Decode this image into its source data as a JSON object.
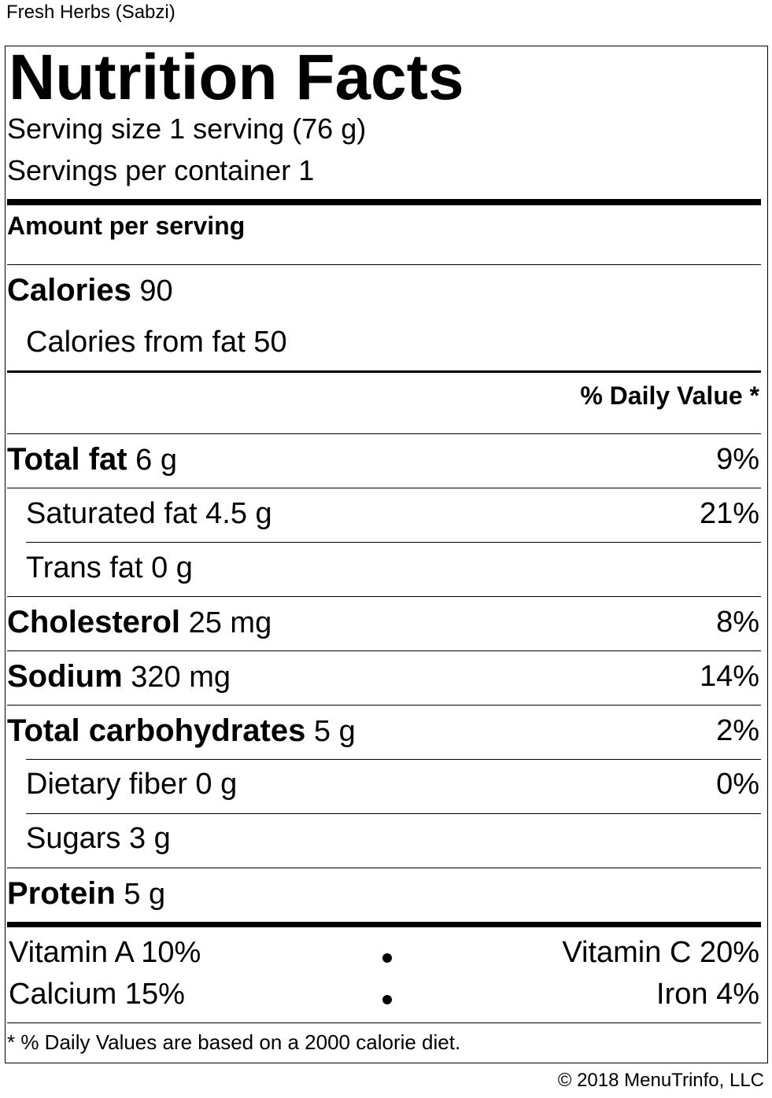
{
  "product_name": "Fresh Herbs (Sabzi)",
  "label": {
    "title": "Nutrition Facts",
    "serving_size": "Serving size 1 serving (76 g)",
    "servings_per_container": "Servings per container 1",
    "amount_per_serving": "Amount per serving",
    "calories_label": "Calories",
    "calories_value": "90",
    "calories_from_fat": "Calories from fat 50",
    "daily_value_header": "% Daily Value *",
    "nutrients": [
      {
        "name": "Total fat",
        "amount": "6 g",
        "dv": "9%"
      },
      {
        "name": "Saturated fat",
        "amount": "4.5 g",
        "dv": "21%"
      },
      {
        "name": "Trans fat",
        "amount": "0 g",
        "dv": ""
      },
      {
        "name": "Cholesterol",
        "amount": "25 mg",
        "dv": "8%"
      },
      {
        "name": "Sodium",
        "amount": "320 mg",
        "dv": "14%"
      },
      {
        "name": "Total carbohydrates",
        "amount": "5 g",
        "dv": "2%"
      },
      {
        "name": "Dietary fiber",
        "amount": "0 g",
        "dv": "0%"
      },
      {
        "name": "Sugars",
        "amount": "3 g",
        "dv": ""
      },
      {
        "name": "Protein",
        "amount": "5 g",
        "dv": ""
      }
    ],
    "vitamins": {
      "vitamin_a": "Vitamin A 10%",
      "vitamin_c": "Vitamin C 20%",
      "calcium": "Calcium 15%",
      "iron": "Iron 4%"
    },
    "footnote": "* % Daily Values are based on a 2000 calorie diet."
  },
  "copyright": "© 2018 MenuTrinfo, LLC"
}
